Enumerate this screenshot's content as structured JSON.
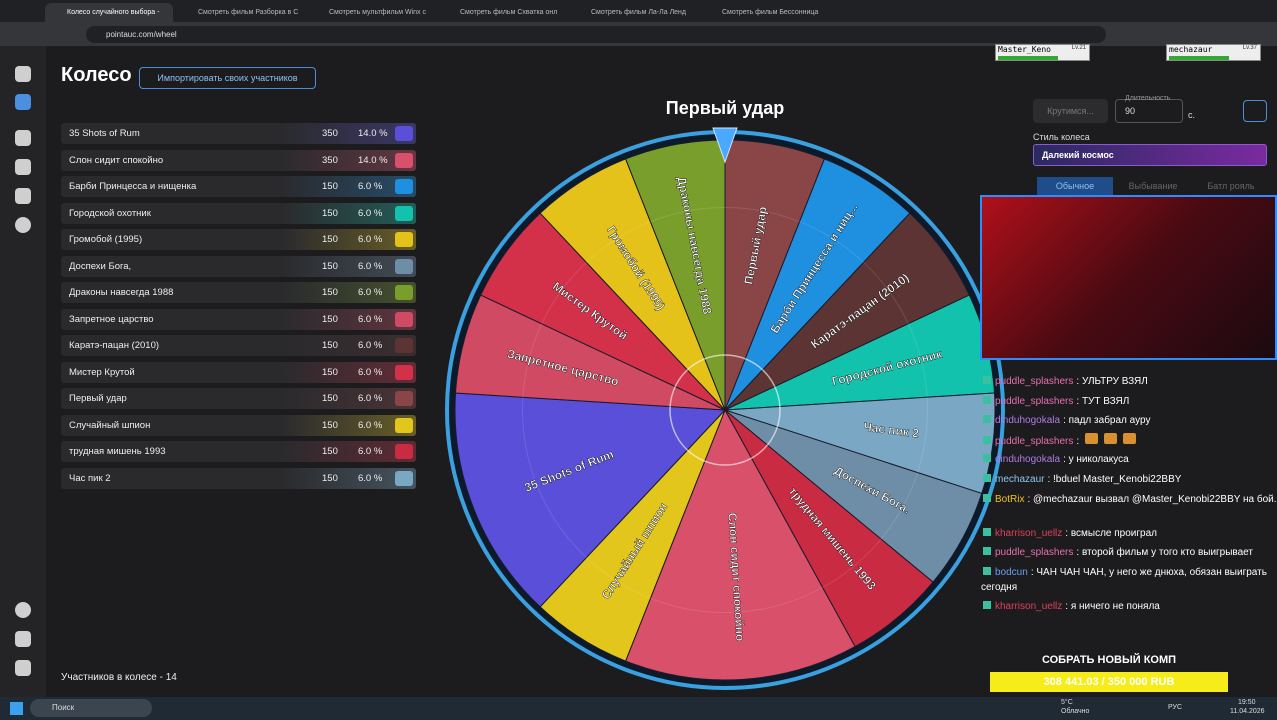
{
  "browser": {
    "tabs": [
      "Колесо случайного выбора -",
      "Смотреть фильм Разборка в С",
      "Смотреть мультфильм Winx с",
      "Смотреть фильм Схватка онл",
      "Смотреть фильм Ла-Ла Ленд",
      "Смотреть фильм Бессонница"
    ],
    "url": "pointauc.com/wheel"
  },
  "header": {
    "title": "Колесо",
    "import_button": "Импортировать своих участников"
  },
  "participants": [
    {
      "name": "35 Shots of Rum",
      "amount": "350",
      "percent": "14.0 %",
      "color": "#5a4fd8"
    },
    {
      "name": "Слон сидит спокойно",
      "amount": "350",
      "percent": "14.0 %",
      "color": "#d8506a"
    },
    {
      "name": "Барби Принцесса и нищенка",
      "amount": "150",
      "percent": "6.0 %",
      "color": "#1f8fe0"
    },
    {
      "name": "Городской охотник",
      "amount": "150",
      "percent": "6.0 %",
      "color": "#12c2ad"
    },
    {
      "name": "Громобой (1995)",
      "amount": "150",
      "percent": "6.0 %",
      "color": "#e4c21a"
    },
    {
      "name": "Доспехи Бога,",
      "amount": "150",
      "percent": "6.0 %",
      "color": "#6e8ea8"
    },
    {
      "name": "Драконы навсегда 1988",
      "amount": "150",
      "percent": "6.0 %",
      "color": "#7a9e2c"
    },
    {
      "name": "Запретное царство",
      "amount": "150",
      "percent": "6.0 %",
      "color": "#cf4a62"
    },
    {
      "name": "Каратэ-пацан (2010)",
      "amount": "150",
      "percent": "6.0 %",
      "color": "#5c3434"
    },
    {
      "name": "Мистер Крутой",
      "amount": "150",
      "percent": "6.0 %",
      "color": "#d3304a"
    },
    {
      "name": "Первый удар",
      "amount": "150",
      "percent": "6.0 %",
      "color": "#8a4646"
    },
    {
      "name": "Случайный шпион",
      "amount": "150",
      "percent": "6.0 %",
      "color": "#e3c61c"
    },
    {
      "name": "трудная мишень 1993",
      "amount": "150",
      "percent": "6.0 %",
      "color": "#c92c42"
    },
    {
      "name": "Час пик 2",
      "amount": "150",
      "percent": "6.0 %",
      "color": "#7aa8c4"
    }
  ],
  "participants_count": "Участников в колесе - 14",
  "wheel": {
    "title": "Первый удар",
    "segments": [
      "Первый удар",
      "Барби Принцесса и ниц...",
      "Каратэ-пацан (2010)",
      "Городской охотник",
      "Час пик 2",
      "Доспехи Бога.",
      "трудная мишень 1993",
      "Слон сидит спокойно",
      "Случайный шпион",
      "35 Shots of Rum",
      "Запретное царство",
      "Мистер Крутой",
      "Громобой (1995)",
      "Драконы навсегда 1988"
    ]
  },
  "controls": {
    "spin_button": "Крутимся...",
    "duration_label": "Длительность",
    "duration": "90",
    "unit": "с.",
    "style_label": "Стиль колеса",
    "style": "Далекий космос",
    "modes": [
      "Обычное",
      "Выбывание",
      "Батл рояль"
    ]
  },
  "stream": {
    "players": [
      {
        "name": "Master_Keno",
        "level": "Lv.21"
      },
      {
        "name": "mechazaur",
        "level": "Lv.37"
      }
    ],
    "chat": [
      {
        "user": "puddle_splashers",
        "text": ": УЛЬТРУ ВЗЯЛ",
        "color": "#e86fb0"
      },
      {
        "user": "puddle_splashers",
        "text": ": ТУТ ВЗЯЛ",
        "color": "#e86fb0"
      },
      {
        "user": "dinduhogokala",
        "text": ": падл забрал ауру",
        "color": "#b07ae8"
      },
      {
        "user": "puddle_splashers",
        "text": ":",
        "color": "#e86fb0"
      },
      {
        "user": "dinduhogokala",
        "text": ": у николакуса",
        "color": "#b07ae8"
      },
      {
        "user": "mechazaur",
        "text": ": !bduel Master_Kenobi22BBY",
        "color": "#8ec6f0"
      },
      {
        "user": "BotRix",
        "text": ": @mechazaur вызвал @Master_Kenobi22BBY на бой.",
        "color": "#f0c020"
      },
      {
        "user": "kharrison_uellz",
        "text": ": всмысле проиграл",
        "color": "#e0405a"
      },
      {
        "user": "puddle_splashers",
        "text": ": второй фильм у того кто выигрывает",
        "color": "#e86fb0"
      },
      {
        "user": "bodcun",
        "text": ": ЧАН ЧАН ЧАН, у него же днюха, обязан выиграть сегодня",
        "color": "#6f9cf0"
      },
      {
        "user": "kharrison_uellz",
        "text": ": я ничего не поняла",
        "color": "#e0405a"
      }
    ],
    "goal": {
      "title": "СОБРАТЬ НОВЫЙ КОМП",
      "progress": "308 441.03 / 350 000 RUB"
    }
  },
  "taskbar": {
    "search": "Поиск",
    "weather_temp": "5°C",
    "weather": "Облачно",
    "lang": "РУС",
    "time": "19:50",
    "date": "11.04.2026"
  }
}
